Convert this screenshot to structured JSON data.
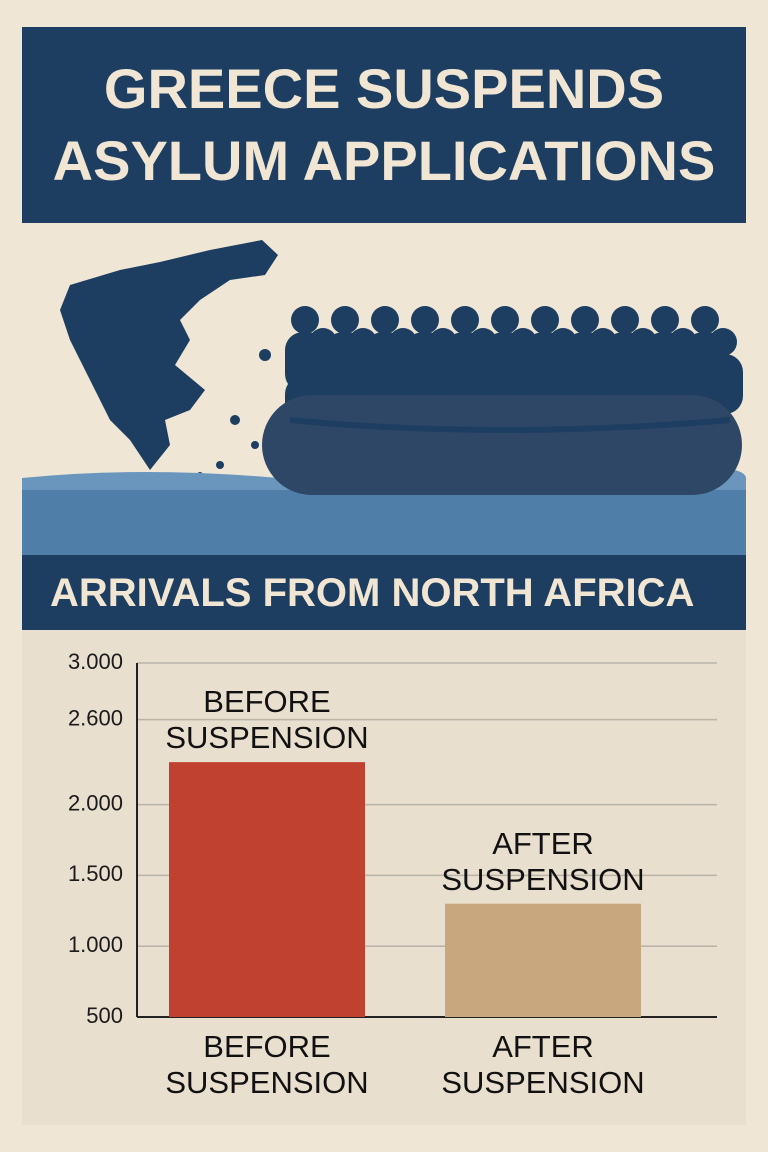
{
  "chart_data": {
    "type": "bar",
    "title": "GREECE SUSPENDS ASYLUM APPLICATIONS",
    "subtitle": "ARRIVALS FROM NORTH AFRICA",
    "categories": [
      "BEFORE SUSPENSION",
      "AFTER SUSPENSION"
    ],
    "values": [
      2300,
      1300
    ],
    "colors": [
      "#c0412f",
      "#c8a77f"
    ],
    "ylim": [
      500,
      3000
    ],
    "yticks": [
      {
        "value": 500,
        "label": "500"
      },
      {
        "value": 1000,
        "label": "1.000"
      },
      {
        "value": 1500,
        "label": "1.500"
      },
      {
        "value": 2000,
        "label": "2.000"
      },
      {
        "value": 2600,
        "label": "2.600"
      },
      {
        "value": 3000,
        "label": "3.000"
      }
    ],
    "grid": true
  }
}
